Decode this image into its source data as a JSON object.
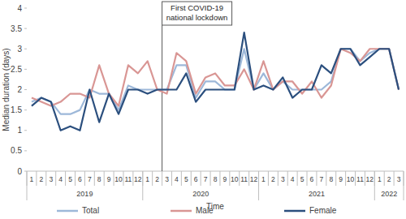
{
  "chart_data": {
    "type": "line",
    "y_label": "Median duration (days)",
    "x_label": "Time",
    "categories": [
      "1",
      "2",
      "3",
      "4",
      "5",
      "6",
      "7",
      "8",
      "9",
      "10",
      "11",
      "12",
      "1",
      "2",
      "3",
      "4",
      "5",
      "6",
      "7",
      "8",
      "9",
      "10",
      "11",
      "12",
      "1",
      "2",
      "3",
      "4",
      "5",
      "6",
      "7",
      "8",
      "9",
      "10",
      "11",
      "12",
      "1",
      "2",
      "3"
    ],
    "groups": [
      {
        "label": "2019",
        "size": 12
      },
      {
        "label": "2020",
        "size": 12
      },
      {
        "label": "2021",
        "size": 12
      },
      {
        "label": "2022",
        "size": 3
      }
    ],
    "series": [
      {
        "name": "Total",
        "color": "#9db8d9",
        "values": [
          1.7,
          1.8,
          1.7,
          1.4,
          1.4,
          1.5,
          2.0,
          1.9,
          1.9,
          1.5,
          2.1,
          2.0,
          2.0,
          2.0,
          2.0,
          2.6,
          2.6,
          1.8,
          2.2,
          2.2,
          2.0,
          2.0,
          3.0,
          2.0,
          2.4,
          2.0,
          2.2,
          2.0,
          2.0,
          2.0,
          2.0,
          2.2,
          3.0,
          3.0,
          2.7,
          2.9,
          3.0,
          3.0,
          2.0
        ]
      },
      {
        "name": "Male",
        "color": "#d99694",
        "values": [
          1.8,
          1.7,
          1.6,
          1.7,
          1.9,
          1.9,
          1.8,
          2.6,
          1.9,
          1.6,
          2.6,
          2.4,
          2.7,
          2.0,
          1.9,
          2.9,
          2.7,
          1.9,
          2.3,
          2.4,
          2.1,
          2.1,
          2.5,
          2.0,
          2.7,
          2.0,
          2.2,
          2.2,
          1.9,
          2.2,
          1.8,
          2.1,
          3.0,
          2.9,
          2.7,
          3.0,
          3.0,
          3.0,
          2.0
        ]
      },
      {
        "name": "Female",
        "color": "#2b4f7e",
        "values": [
          1.6,
          1.8,
          1.7,
          1.0,
          1.1,
          1.0,
          2.0,
          1.2,
          1.9,
          1.4,
          2.0,
          2.0,
          1.9,
          2.0,
          2.0,
          2.0,
          2.4,
          1.7,
          2.0,
          2.0,
          2.0,
          2.0,
          3.4,
          2.0,
          2.1,
          2.0,
          2.3,
          1.8,
          2.0,
          2.0,
          2.6,
          2.4,
          3.0,
          3.0,
          2.6,
          2.8,
          3.0,
          3.0,
          2.0
        ]
      }
    ],
    "annotations": [
      {
        "lines": [
          "First COVID-19",
          "national lockdown"
        ],
        "position": 13.5
      }
    ],
    "ylim": [
      0,
      4
    ],
    "yticks": [
      0,
      0.5,
      1,
      1.5,
      2,
      2.5,
      3,
      3.5,
      4
    ],
    "grid": false,
    "legend": "bottom"
  }
}
